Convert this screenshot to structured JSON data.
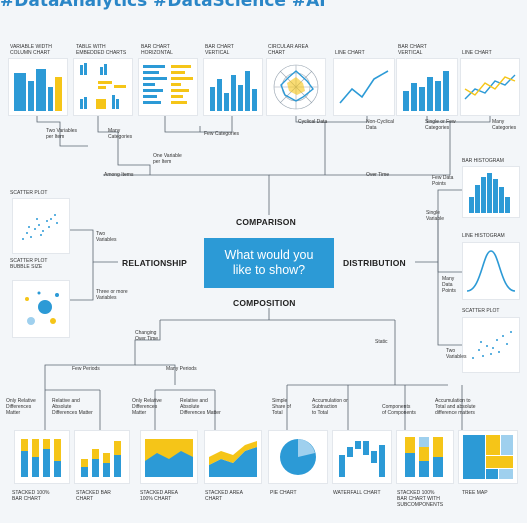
{
  "header": "#DataAnalytics #DataScience #AI",
  "center_question": "What would you\nlike to show?",
  "sections": {
    "comparison": "COMPARISON",
    "relationship": "RELATIONSHIP",
    "distribution": "DISTRIBUTION",
    "composition": "COMPOSITION"
  },
  "top_charts": [
    "VARIABLE WIDTH\nCOLUMN CHART",
    "TABLE WITH\nEMBEDDED CHARTS",
    "BAR CHART\nHORIZONTAL",
    "BAR CHART\nVERTICAL",
    "CIRCULAR AREA\nCHART",
    "LINE CHART",
    "BAR CHART\nVERTICAL",
    "LINE CHART"
  ],
  "top_notes": {
    "two_var": "Two Variables\nper Item",
    "many_cat": "Many\nCategories",
    "few_cat": "Few Categories",
    "cyclical": "Cyclical Data",
    "noncyclical": "Non-Cyclical\nData",
    "single_few": "Single or Few\nCategories",
    "many_cat_r": "Many\nCategories",
    "one_var": "One Variable\nper Item",
    "among_items": "Among Items",
    "over_time": "Over Time"
  },
  "relationship": {
    "scatter_label": "SCATTER PLOT",
    "bubble_label": "SCATTER PLOT\nBUBBLE SIZE",
    "two_vars": "Two\nVariables",
    "three_more": "Three or more\nVariables"
  },
  "distribution": {
    "bar_hist": "BAR HISTOGRAM",
    "few_points": "Few Data\nPoints",
    "single_var": "Single\nVariable",
    "line_hist": "LINE HISTOGRAM",
    "many_points": "Many\nData\nPoints",
    "scatter": "SCATTER PLOT",
    "two_vars": "Two\nVariables"
  },
  "composition": {
    "changing": "Changing\nOver Time",
    "static": "Static",
    "few_periods": "Few Periods",
    "many_periods": "Many Periods",
    "rel1": "Only Relative\nDifferences\nMatter",
    "relabs1": "Relative and\nAbsolute\nDifferences Matter",
    "rel2": "Only Relative\nDifferences\nMatter",
    "relabs2": "Relative and\nAbsolute\nDifferences Matter",
    "simple_share": "Simple\nShare of\nTotal",
    "accum": "Accumulation or\nSubtraction\nto Total",
    "components": "Components\nof Components",
    "accum_total": "Accumulation to\nTotal and absolute\ndifference matters"
  },
  "bottom_charts": [
    "STACKED 100%\nBAR CHART",
    "STACKED BAR\nCHART",
    "STACKED AREA\n100% CHART",
    "STACKED AREA\nCHART",
    "PIE CHART",
    "WATERFALL CHART",
    "STACKED 100%\nBAR CHART WITH\nSUBCOMPONENTS",
    "TREE MAP"
  ],
  "colors": {
    "blue": "#2c9ad6",
    "yellow": "#f5c518",
    "line": "#5a6570"
  }
}
